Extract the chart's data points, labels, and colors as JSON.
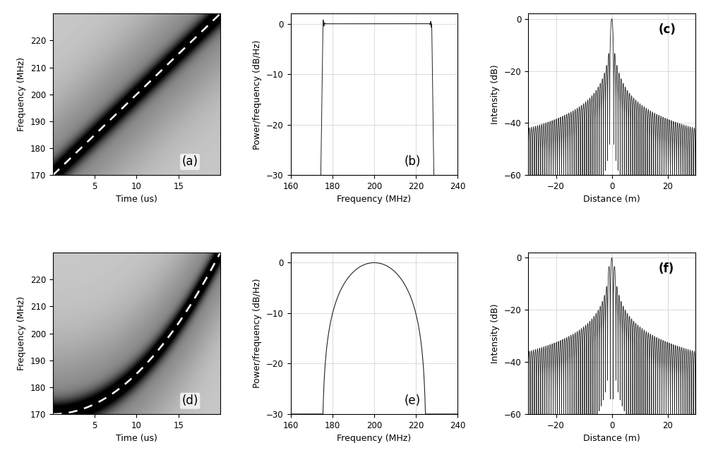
{
  "fig_width": 10.0,
  "fig_height": 6.45,
  "dpi": 100,
  "panel_labels": [
    "(a)",
    "(b)",
    "(c)",
    "(d)",
    "(e)",
    "(f)"
  ],
  "panel_label_fontsize": 12,
  "axis_label_fontsize": 9,
  "tick_fontsize": 8.5,
  "grid_color": "#cccccc",
  "line_color": "#222222",
  "bg_color": "#ffffff",
  "spectrogram_bg": "#b0b0b0"
}
